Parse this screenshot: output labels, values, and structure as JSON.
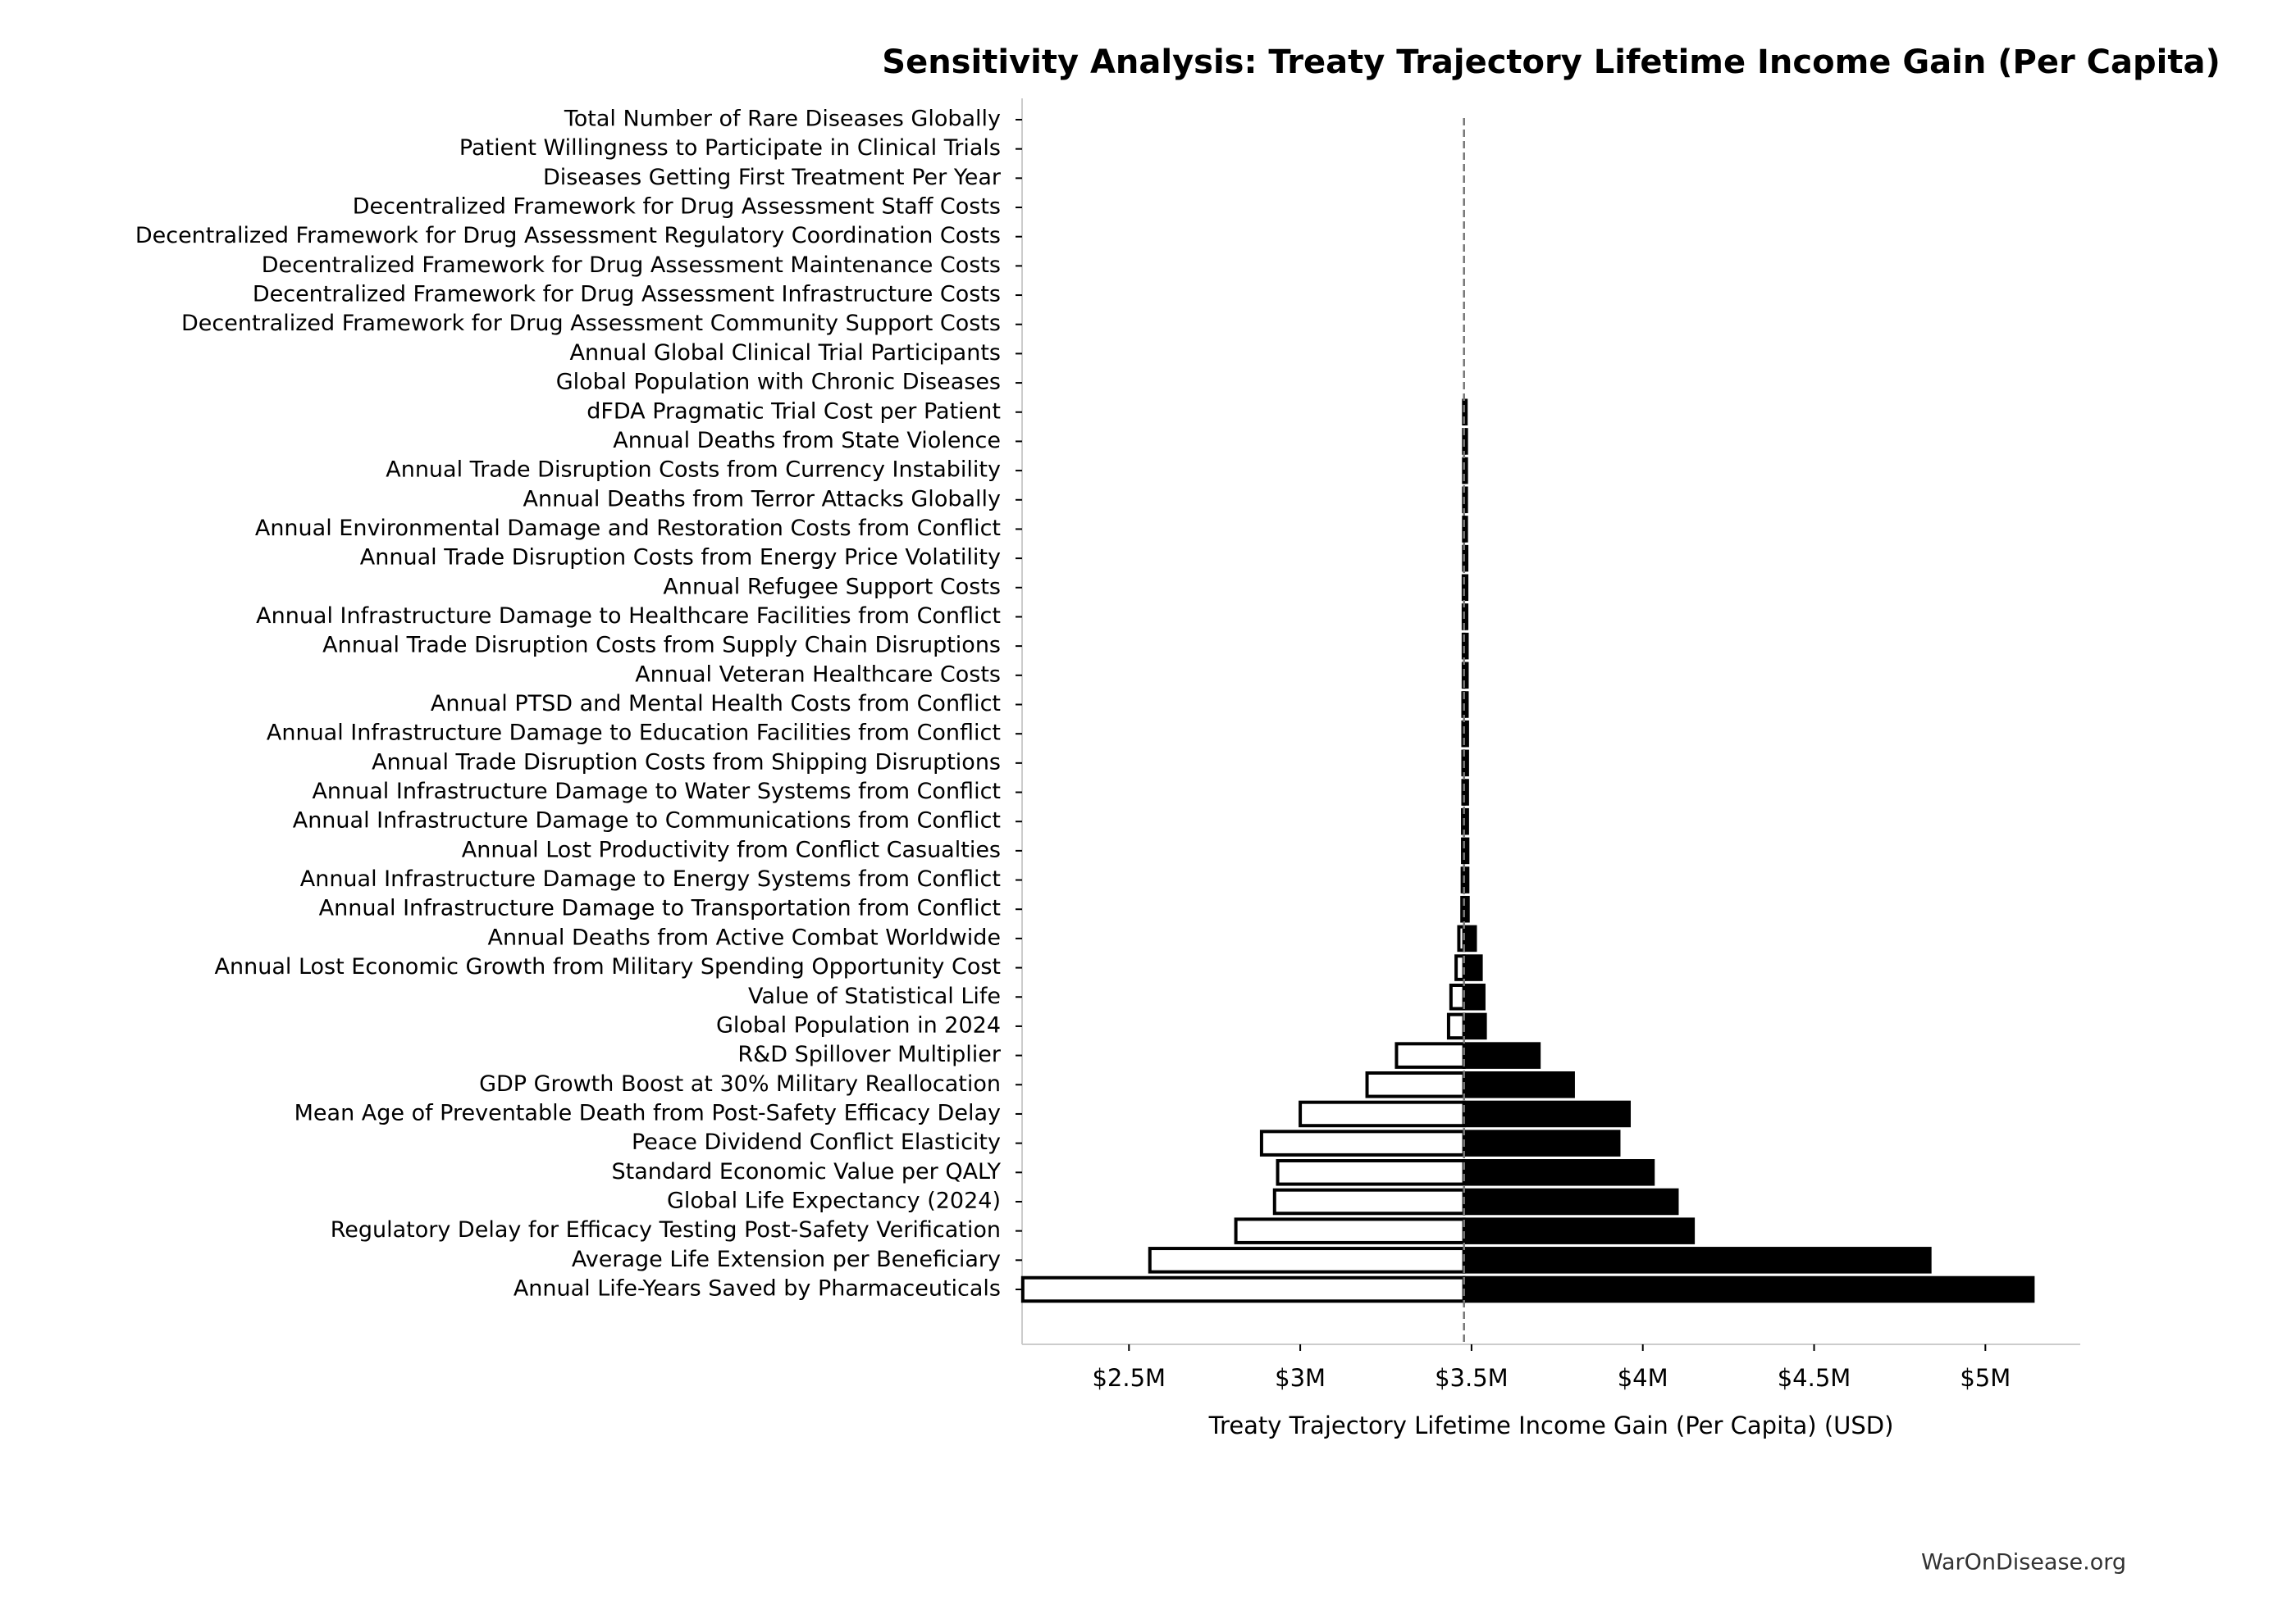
{
  "chart_data": {
    "type": "tornado",
    "title": "Sensitivity Analysis: Treaty Trajectory Lifetime Income Gain (Per Capita)",
    "xlabel": "Treaty Trajectory Lifetime Income Gain (Per Capita) (USD)",
    "source": "WarOnDisease.org",
    "categories": [
      "Total Number of Rare Diseases Globally",
      "Patient Willingness to Participate in Clinical Trials",
      "Diseases Getting First Treatment Per Year",
      "Decentralized Framework for Drug Assessment Staff Costs",
      "Decentralized Framework for Drug Assessment Regulatory Coordination Costs",
      "Decentralized Framework for Drug Assessment Maintenance Costs",
      "Decentralized Framework for Drug Assessment Infrastructure Costs",
      "Decentralized Framework for Drug Assessment Community Support Costs",
      "Annual Global Clinical Trial Participants",
      "Global Population with Chronic Diseases",
      "dFDA Pragmatic Trial Cost per Patient",
      "Annual Deaths from State Violence",
      "Annual Trade Disruption Costs from Currency Instability",
      "Annual Deaths from Terror Attacks Globally",
      "Annual Environmental Damage and Restoration Costs from Conflict",
      "Annual Trade Disruption Costs from Energy Price Volatility",
      "Annual Refugee Support Costs",
      "Annual Infrastructure Damage to Healthcare Facilities from Conflict",
      "Annual Trade Disruption Costs from Supply Chain Disruptions",
      "Annual Veteran Healthcare Costs",
      "Annual PTSD and Mental Health Costs from Conflict",
      "Annual Infrastructure Damage to Education Facilities from Conflict",
      "Annual Trade Disruption Costs from Shipping Disruptions",
      "Annual Infrastructure Damage to Water Systems from Conflict",
      "Annual Infrastructure Damage to Communications from Conflict",
      "Annual Lost Productivity from Conflict Casualties",
      "Annual Infrastructure Damage to Energy Systems from Conflict",
      "Annual Infrastructure Damage to Transportation from Conflict",
      "Annual Deaths from Active Combat Worldwide",
      "Annual Lost Economic Growth from Military Spending Opportunity Cost",
      "Value of Statistical Life",
      "Global Population in 2024",
      "R&D Spillover Multiplier",
      "GDP Growth Boost at 30% Military Reallocation",
      "Mean Age of Preventable Death from Post-Safety Efficacy Delay",
      "Peace Dividend Conflict Elasticity",
      "Standard Economic Value per QALY",
      "Global Life Expectancy (2024)",
      "Regulatory Delay for Efficacy Testing Post-Safety Verification",
      "Average Life Extension per Beneficiary",
      "Annual Life-Years Saved by Pharmaceuticals"
    ],
    "values_low": [
      3478000,
      3478000,
      3478000,
      3478000,
      3478000,
      3478000,
      3478000,
      3478000,
      3478000,
      3478000,
      3477000,
      3477000,
      3477000,
      3477000,
      3477000,
      3477000,
      3476000,
      3476000,
      3476000,
      3476000,
      3475000,
      3475000,
      3475000,
      3475000,
      3474000,
      3474000,
      3473000,
      3472000,
      3463000,
      3455000,
      3440000,
      3433000,
      3281000,
      3195000,
      3000000,
      2887000,
      2934000,
      2925000,
      2812000,
      2561000,
      2190000
    ],
    "values_high": [
      3478000,
      3478000,
      3478000,
      3478000,
      3478000,
      3478000,
      3478000,
      3478000,
      3478000,
      3478000,
      3484000,
      3485000,
      3485000,
      3485000,
      3485000,
      3486000,
      3486000,
      3486000,
      3487000,
      3487000,
      3487000,
      3488000,
      3488000,
      3488000,
      3488000,
      3489000,
      3489000,
      3490000,
      3511000,
      3528000,
      3536000,
      3540000,
      3697000,
      3797000,
      3960000,
      3930000,
      4030000,
      4100000,
      4147000,
      4838000,
      5139000
    ],
    "baseline": 3478000,
    "low_color": "#ffffff",
    "high_color": "#000000",
    "xlim": [
      2188000,
      5277000
    ],
    "xticks": [
      {
        "value": 2500000,
        "label": "$2.5M"
      },
      {
        "value": 3000000,
        "label": "$3M"
      },
      {
        "value": 3500000,
        "label": "$3.5M"
      },
      {
        "value": 4000000,
        "label": "$4M"
      },
      {
        "value": 4500000,
        "label": "$4.5M"
      },
      {
        "value": 5000000,
        "label": "$5M"
      }
    ],
    "grid": false
  }
}
